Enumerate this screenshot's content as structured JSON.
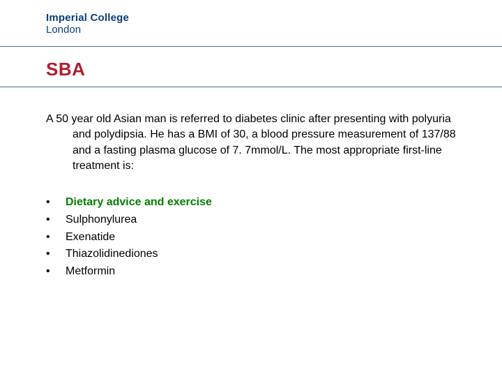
{
  "logo": {
    "line1": "Imperial College",
    "line2": "London",
    "color": "#0a3e7a"
  },
  "title": {
    "text": "SBA",
    "color": "#b01c2e",
    "fontsize": 26
  },
  "rules": {
    "color": "#4a6a8a"
  },
  "question": {
    "text": "A 50 year old Asian man is referred to diabetes clinic after presenting with polyuria and polydipsia. He has a BMI of 30, a blood pressure measurement of 137/88 and a fasting plasma glucose of 7. 7mmol/L. The most appropriate first-line treatment is:",
    "fontsize": 16,
    "color": "#000000"
  },
  "options": {
    "bullet": "•",
    "items": [
      {
        "label": "Dietary advice and exercise",
        "correct": true
      },
      {
        "label": "Sulphonylurea",
        "correct": false
      },
      {
        "label": "Exenatide",
        "correct": false
      },
      {
        "label": "Thiazolidinediones",
        "correct": false
      },
      {
        "label": "Metformin",
        "correct": false
      }
    ],
    "correct_color": "#008000",
    "text_color": "#000000",
    "fontsize": 16
  },
  "background_color": "#ffffff"
}
